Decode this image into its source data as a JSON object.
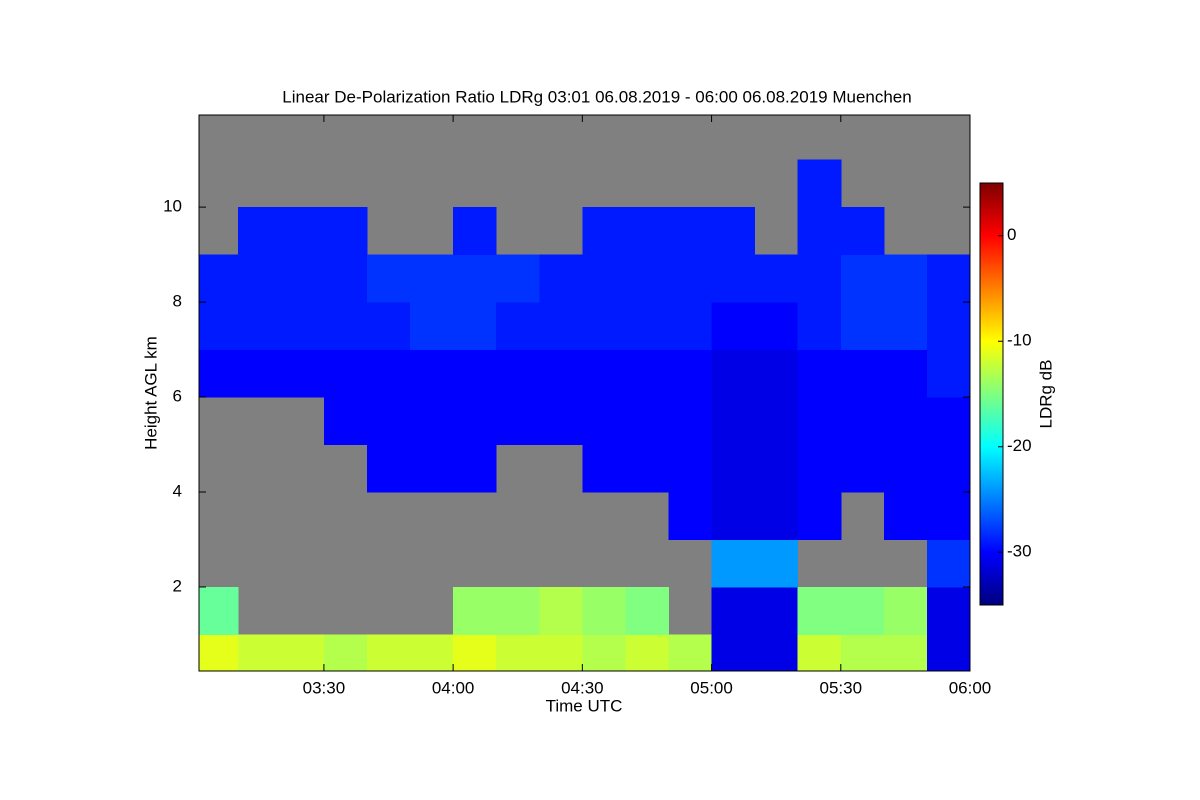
{
  "chart_data": {
    "type": "heatmap",
    "title": "Linear De-Polarization Ratio LDRg   03:01 06.08.2019 - 06:00 06.08.2019 Muenchen",
    "xlabel": "Time UTC",
    "ylabel": "Height AGL km",
    "colorbar_label": "LDRg dB",
    "colormap": "jet",
    "missing_color": "#808080",
    "xlim": [
      3.0167,
      6.0
    ],
    "ylim": [
      0.23,
      11.94
    ],
    "xticks": [
      {
        "value": 3.5,
        "label": "03:30"
      },
      {
        "value": 4,
        "label": "04:00"
      },
      {
        "value": 4.5,
        "label": "04:30"
      },
      {
        "value": 5,
        "label": "05:00"
      },
      {
        "value": 5.5,
        "label": "05:30"
      },
      {
        "value": 6,
        "label": "06:00"
      }
    ],
    "yticks": [
      2,
      4,
      6,
      8,
      10
    ],
    "vlim": [
      -35,
      5
    ],
    "vticks": [
      0,
      -10,
      -20,
      -30
    ],
    "x_bins": [
      3.0167,
      3.1667,
      3.3333,
      3.5,
      3.6667,
      3.8333,
      4,
      4.1667,
      4.3333,
      4.5,
      4.6667,
      4.8333,
      5,
      5.1667,
      5.3333,
      5.5,
      5.6667,
      5.8333,
      6
    ],
    "y_bins": [
      0.23,
      1,
      2,
      3,
      4,
      5,
      6,
      7,
      8,
      9,
      10,
      11,
      11.94
    ],
    "values": [
      [
        -11,
        -12,
        -12,
        -13,
        -12,
        -12,
        -11,
        -12,
        -12,
        -13,
        -12,
        -13,
        -31,
        -31,
        -12,
        -13,
        -13,
        -31
      ],
      [
        -16,
        null,
        null,
        null,
        null,
        null,
        -14,
        -14,
        -13,
        -14,
        -15,
        null,
        -31,
        -31,
        -15,
        -15,
        -14,
        -31
      ],
      [
        null,
        null,
        null,
        null,
        null,
        null,
        null,
        null,
        null,
        null,
        null,
        null,
        -24,
        -24,
        null,
        null,
        null,
        -28
      ],
      [
        null,
        null,
        null,
        null,
        null,
        null,
        null,
        null,
        null,
        null,
        null,
        -30,
        -31,
        -31,
        -30,
        null,
        -30,
        -30
      ],
      [
        null,
        null,
        null,
        null,
        -30,
        -30,
        -30,
        null,
        null,
        -30,
        -30,
        -30,
        -31,
        -31,
        -30,
        -30,
        -30,
        -30
      ],
      [
        null,
        null,
        null,
        -30,
        -30,
        -30,
        -30,
        -30,
        -30,
        -30,
        -30,
        -30,
        -31,
        -31,
        -30,
        -30,
        -30,
        -30
      ],
      [
        -30,
        -30,
        -30,
        -30,
        -30,
        -30,
        -30,
        -30,
        -30,
        -30,
        -30,
        -30,
        -31,
        -31,
        -30,
        -30,
        -30,
        -29
      ],
      [
        -29,
        -29,
        -29,
        -29,
        -29,
        -28,
        -28,
        -29,
        -29,
        -29,
        -29,
        -29,
        -30,
        -30,
        -29,
        -28,
        -28,
        -29
      ],
      [
        -29,
        -29,
        -29,
        -29,
        -28,
        -28,
        -28,
        -28,
        -29,
        -29,
        -29,
        -29,
        -29,
        -29,
        -29,
        -28,
        -28,
        -29
      ],
      [
        null,
        -29,
        -29,
        -29,
        null,
        null,
        -29,
        null,
        null,
        -29,
        -29,
        -29,
        -29,
        null,
        -29,
        -29,
        null,
        null
      ],
      [
        null,
        null,
        null,
        null,
        null,
        null,
        null,
        null,
        null,
        null,
        null,
        null,
        null,
        null,
        -29,
        null,
        null,
        null
      ],
      [
        null,
        null,
        null,
        null,
        null,
        null,
        null,
        null,
        null,
        null,
        null,
        null,
        null,
        null,
        null,
        null,
        null,
        null
      ]
    ]
  }
}
